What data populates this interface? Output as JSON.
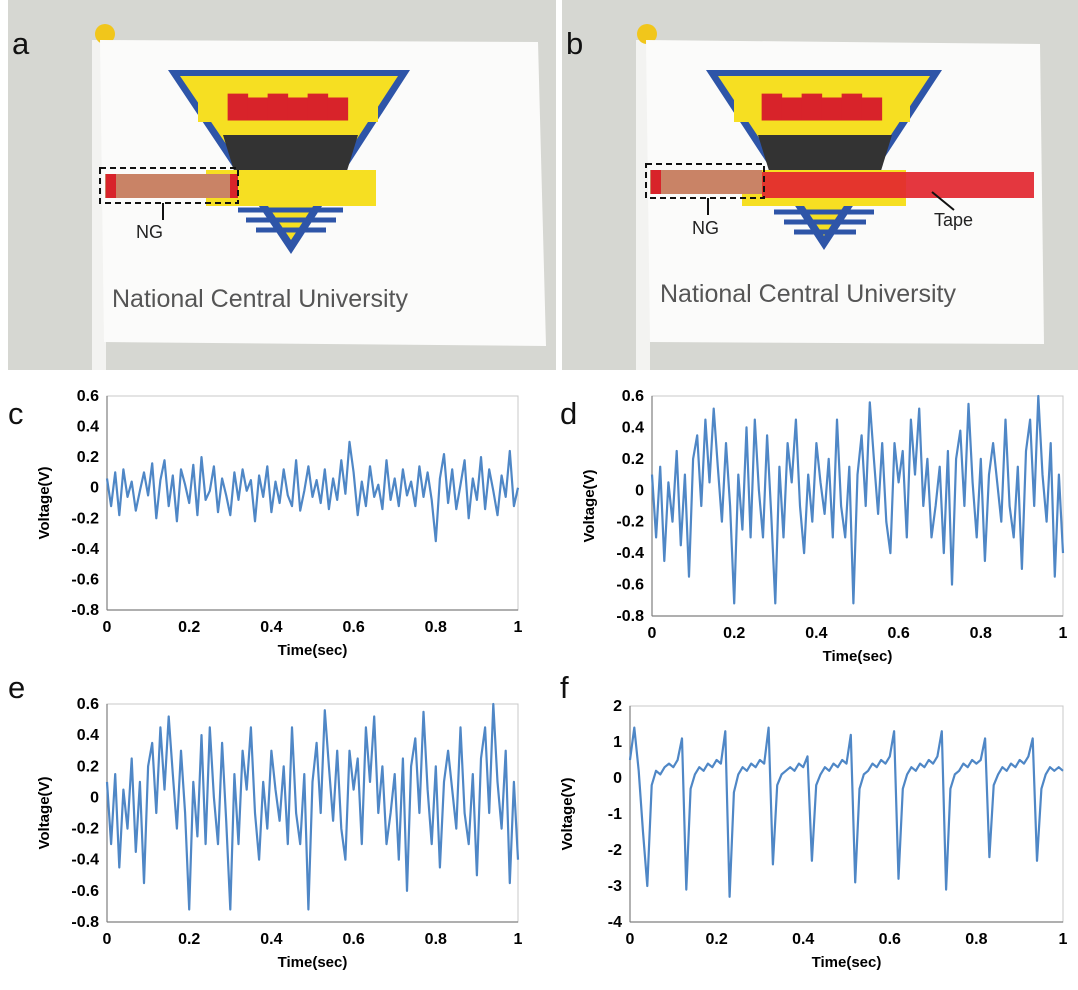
{
  "photos": [
    {
      "letter": "a",
      "ng_label": "NG",
      "caption": "National Central University"
    },
    {
      "letter": "b",
      "ng_label": "NG",
      "tape_label": "Tape",
      "caption": "National Central University"
    }
  ],
  "colors": {
    "line": "#4f87c6",
    "flag_yellow": "#f6df22",
    "flag_blue": "#2e55a8",
    "emblem_red": "#d8232a",
    "tape_red": "#e2262f",
    "copper": "#c98366"
  },
  "chart_data": [
    {
      "letter": "c",
      "type": "line",
      "xlabel": "Time(sec)",
      "ylabel": "Voltage(V)",
      "ylim": [
        -0.8,
        0.6
      ],
      "yticks": [
        0.6,
        0.4,
        0.2,
        0,
        -0.2,
        -0.4,
        -0.6,
        -0.8
      ],
      "xlim": [
        0,
        1
      ],
      "xticks": [
        0,
        0.2,
        0.4,
        0.6,
        0.8,
        1
      ],
      "ytick_labels": [
        "0.6",
        "0.4",
        "0.2",
        "0",
        "-0.2",
        "-0.4",
        "-0.6",
        "-0.8"
      ],
      "xtick_labels": [
        "0",
        "0.2",
        "0.4",
        "0.6",
        "0.8",
        "1"
      ],
      "x_step": 0.01,
      "y": [
        0.06,
        -0.12,
        0.1,
        -0.18,
        0.12,
        -0.06,
        0.04,
        -0.15,
        -0.02,
        0.1,
        -0.05,
        0.16,
        -0.2,
        0.05,
        0.18,
        -0.12,
        0.08,
        -0.22,
        0.12,
        0.02,
        -0.1,
        0.15,
        -0.18,
        0.2,
        -0.08,
        -0.02,
        0.14,
        -0.16,
        0.06,
        -0.05,
        -0.18,
        0.1,
        -0.08,
        0.12,
        -0.02,
        0.05,
        -0.22,
        0.08,
        -0.06,
        0.14,
        -0.16,
        0.04,
        -0.1,
        0.12,
        -0.05,
        -0.12,
        0.18,
        -0.15,
        -0.02,
        0.14,
        -0.06,
        0.05,
        -0.1,
        0.12,
        -0.14,
        0.06,
        -0.08,
        0.18,
        -0.04,
        0.3,
        0.1,
        -0.18,
        0.04,
        -0.12,
        0.14,
        -0.06,
        0.02,
        -0.14,
        0.18,
        -0.08,
        0.06,
        -0.12,
        0.12,
        -0.05,
        0.04,
        -0.12,
        0.14,
        -0.06,
        0.1,
        -0.08,
        -0.35,
        0.06,
        0.22,
        -0.1,
        0.12,
        -0.14,
        0.02,
        0.18,
        -0.2,
        0.06,
        -0.08,
        0.2,
        -0.14,
        0.12,
        -0.02,
        -0.18,
        0.08,
        -0.06,
        0.24,
        -0.12,
        0.0
      ]
    },
    {
      "letter": "d",
      "type": "line",
      "xlabel": "Time(sec)",
      "ylabel": "Voltage(V)",
      "ylim": [
        -0.8,
        0.6
      ],
      "yticks": [
        0.6,
        0.4,
        0.2,
        0,
        -0.2,
        -0.4,
        -0.6,
        -0.8
      ],
      "xlim": [
        0,
        1
      ],
      "xticks": [
        0,
        0.2,
        0.4,
        0.6,
        0.8,
        1
      ],
      "ytick_labels": [
        "0.6",
        "0.4",
        "0.2",
        "0",
        "-0.2",
        "-0.4",
        "-0.6",
        "-0.8"
      ],
      "xtick_labels": [
        "0",
        "0.2",
        "0.4",
        "0.6",
        "0.8",
        "1"
      ],
      "x_step": 0.01,
      "y": [
        0.1,
        -0.3,
        0.15,
        -0.45,
        0.05,
        -0.2,
        0.25,
        -0.35,
        0.1,
        -0.55,
        0.2,
        0.35,
        -0.1,
        0.45,
        0.05,
        0.52,
        0.15,
        -0.2,
        0.3,
        -0.1,
        -0.72,
        0.1,
        -0.25,
        0.4,
        -0.3,
        0.45,
        0.0,
        -0.3,
        0.35,
        -0.15,
        -0.72,
        0.15,
        -0.3,
        0.3,
        0.05,
        0.45,
        -0.1,
        -0.4,
        0.1,
        -0.2,
        0.3,
        0.05,
        -0.15,
        0.2,
        -0.3,
        0.45,
        -0.1,
        -0.3,
        0.15,
        -0.72,
        0.1,
        0.35,
        -0.1,
        0.56,
        0.2,
        -0.15,
        0.3,
        -0.2,
        -0.4,
        0.3,
        0.05,
        0.25,
        -0.3,
        0.45,
        0.1,
        0.52,
        -0.1,
        0.2,
        -0.3,
        -0.1,
        0.15,
        -0.4,
        0.25,
        -0.6,
        0.2,
        0.38,
        -0.1,
        0.55,
        0.05,
        -0.3,
        0.2,
        -0.45,
        0.1,
        0.3,
        0.05,
        -0.2,
        0.45,
        -0.1,
        -0.3,
        0.15,
        -0.5,
        0.25,
        0.45,
        -0.1,
        0.6,
        0.1,
        -0.2,
        0.3,
        -0.55,
        0.1,
        -0.4
      ]
    },
    {
      "letter": "e",
      "type": "line",
      "xlabel": "Time(sec)",
      "ylabel": "Voltage(V)",
      "ylim": [
        -0.8,
        0.6
      ],
      "yticks": [
        0.6,
        0.4,
        0.2,
        0,
        -0.2,
        -0.4,
        -0.6,
        -0.8
      ],
      "xlim": [
        0,
        1
      ],
      "xticks": [
        0,
        0.2,
        0.4,
        0.6,
        0.8,
        1
      ],
      "ytick_labels": [
        "0.6",
        "0.4",
        "0.2",
        "0",
        "-0.2",
        "-0.4",
        "-0.6",
        "-0.8"
      ],
      "xtick_labels": [
        "0",
        "0.2",
        "0.4",
        "0.6",
        "0.8",
        "1"
      ],
      "x_step": 0.01,
      "y": [
        0.1,
        -0.3,
        0.15,
        -0.45,
        0.05,
        -0.2,
        0.25,
        -0.35,
        0.1,
        -0.55,
        0.2,
        0.35,
        -0.1,
        0.45,
        0.05,
        0.52,
        0.15,
        -0.2,
        0.3,
        -0.1,
        -0.72,
        0.1,
        -0.25,
        0.4,
        -0.3,
        0.45,
        0.0,
        -0.3,
        0.35,
        -0.15,
        -0.72,
        0.15,
        -0.3,
        0.3,
        0.05,
        0.45,
        -0.1,
        -0.4,
        0.1,
        -0.2,
        0.3,
        0.05,
        -0.15,
        0.2,
        -0.3,
        0.45,
        -0.1,
        -0.3,
        0.15,
        -0.72,
        0.1,
        0.35,
        -0.1,
        0.56,
        0.2,
        -0.15,
        0.3,
        -0.2,
        -0.4,
        0.3,
        0.05,
        0.25,
        -0.3,
        0.45,
        0.1,
        0.52,
        -0.1,
        0.2,
        -0.3,
        -0.1,
        0.15,
        -0.4,
        0.25,
        -0.6,
        0.2,
        0.38,
        -0.1,
        0.55,
        0.05,
        -0.3,
        0.2,
        -0.45,
        0.1,
        0.3,
        0.05,
        -0.2,
        0.45,
        -0.1,
        -0.3,
        0.15,
        -0.5,
        0.25,
        0.45,
        -0.1,
        0.6,
        0.1,
        -0.2,
        0.3,
        -0.55,
        0.1,
        -0.4
      ]
    },
    {
      "letter": "f",
      "type": "line",
      "xlabel": "Time(sec)",
      "ylabel": "Voltage(V)",
      "ylim": [
        -4,
        2
      ],
      "yticks": [
        2,
        1,
        0,
        -1,
        -2,
        -3,
        -4
      ],
      "xlim": [
        0,
        1
      ],
      "xticks": [
        0,
        0.2,
        0.4,
        0.6,
        0.8,
        1
      ],
      "ytick_labels": [
        "2",
        "1",
        "0",
        "-1",
        "-2",
        "-3",
        "-4"
      ],
      "xtick_labels": [
        "0",
        "0.2",
        "0.4",
        "0.6",
        "0.8",
        "1"
      ],
      "x_step": 0.01,
      "y": [
        0.5,
        1.4,
        0.2,
        -1.5,
        -3.0,
        -0.2,
        0.2,
        0.1,
        0.3,
        0.4,
        0.3,
        0.5,
        1.1,
        -3.1,
        -0.3,
        0.1,
        0.3,
        0.2,
        0.4,
        0.3,
        0.5,
        0.4,
        1.3,
        -3.3,
        -0.4,
        0.1,
        0.3,
        0.2,
        0.4,
        0.3,
        0.5,
        0.4,
        1.4,
        -2.4,
        -0.2,
        0.1,
        0.2,
        0.3,
        0.2,
        0.4,
        0.3,
        0.6,
        -2.3,
        -0.2,
        0.1,
        0.3,
        0.2,
        0.4,
        0.3,
        0.5,
        0.4,
        1.2,
        -2.9,
        -0.3,
        0.1,
        0.2,
        0.4,
        0.3,
        0.5,
        0.4,
        0.6,
        1.3,
        -2.8,
        -0.3,
        0.1,
        0.3,
        0.2,
        0.4,
        0.3,
        0.5,
        0.4,
        0.6,
        1.3,
        -3.1,
        -0.3,
        0.1,
        0.2,
        0.4,
        0.3,
        0.5,
        0.4,
        0.5,
        1.1,
        -2.2,
        -0.2,
        0.1,
        0.3,
        0.2,
        0.4,
        0.3,
        0.5,
        0.4,
        0.6,
        1.1,
        -2.3,
        -0.3,
        0.1,
        0.3,
        0.2,
        0.3,
        0.2
      ]
    }
  ]
}
